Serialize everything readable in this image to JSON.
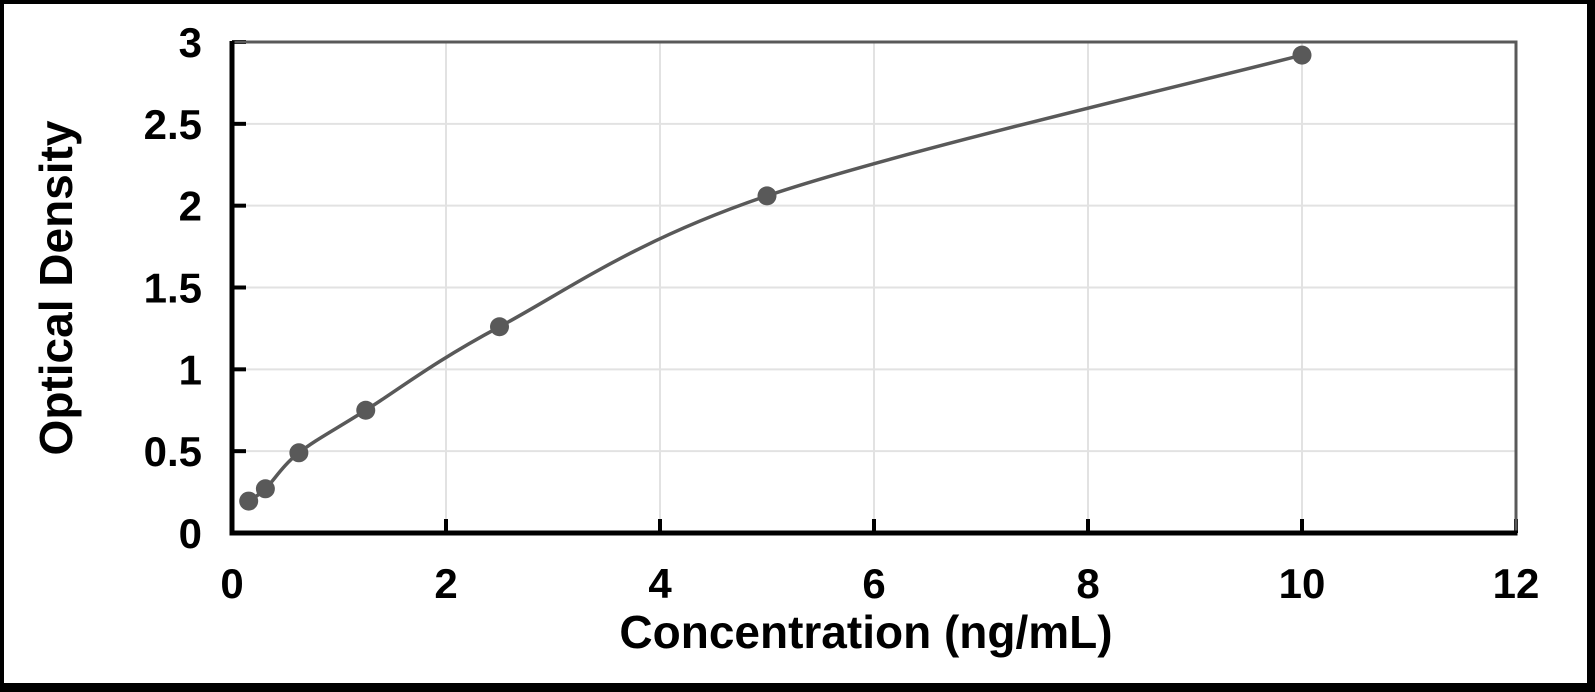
{
  "chart_data": {
    "type": "scatter",
    "line_style": "smooth",
    "xlabel": "Concentration (ng/mL)",
    "ylabel": "Optical Density",
    "x": [
      0.156,
      0.312,
      0.625,
      1.25,
      2.5,
      5,
      10
    ],
    "y": [
      0.195,
      0.27,
      0.49,
      0.75,
      1.26,
      2.06,
      2.92
    ],
    "xlim": [
      0,
      12
    ],
    "ylim": [
      0,
      3
    ],
    "xticks": [
      0,
      2,
      4,
      6,
      8,
      10,
      12
    ],
    "yticks": [
      0,
      0.5,
      1,
      1.5,
      2,
      2.5,
      3
    ],
    "grid": true,
    "legend": false,
    "colors": {
      "marker": "#595959",
      "curve": "#595959",
      "gridline": "#E2E2E2",
      "axis": "#000000",
      "plot_border": "#595959",
      "background": "#FFFFFF",
      "frame": "#000000",
      "text": "#000000"
    }
  }
}
